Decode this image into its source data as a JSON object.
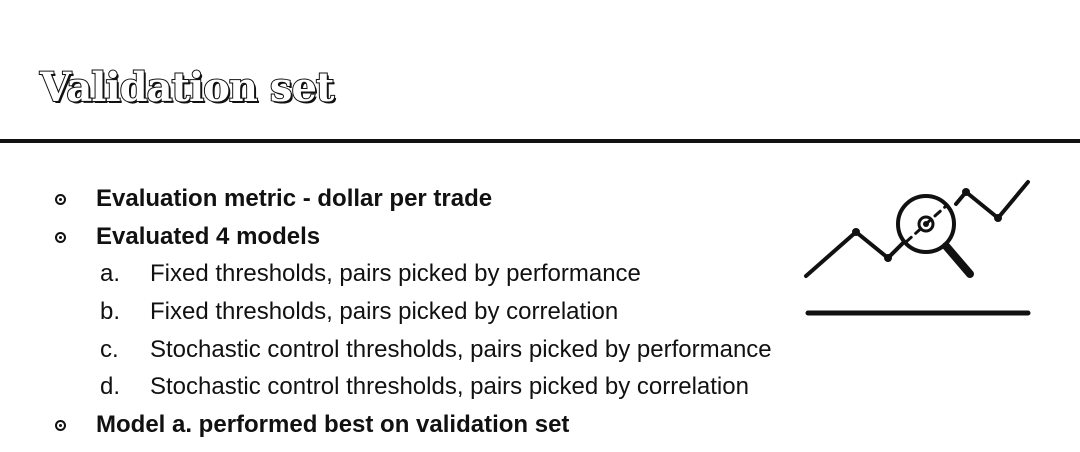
{
  "slide": {
    "title": "Validation set",
    "bullets": [
      {
        "text": "Evaluation metric - dollar per trade"
      },
      {
        "text": "Evaluated 4 models"
      }
    ],
    "sub_items": [
      {
        "marker": "a.",
        "text": "Fixed thresholds, pairs picked by performance"
      },
      {
        "marker": "b.",
        "text": "Fixed thresholds, pairs picked by correlation"
      },
      {
        "marker": "c.",
        "text": "Stochastic control thresholds, pairs picked by performance"
      },
      {
        "marker": "d.",
        "text": "Stochastic control thresholds, pairs picked by correlation"
      }
    ],
    "final_bullet": {
      "text": "Model a. performed best on validation set"
    },
    "icon": "line-chart-magnifier-icon"
  },
  "colors": {
    "text": "#111111",
    "background": "#ffffff",
    "title_fill": "#ffffff"
  }
}
